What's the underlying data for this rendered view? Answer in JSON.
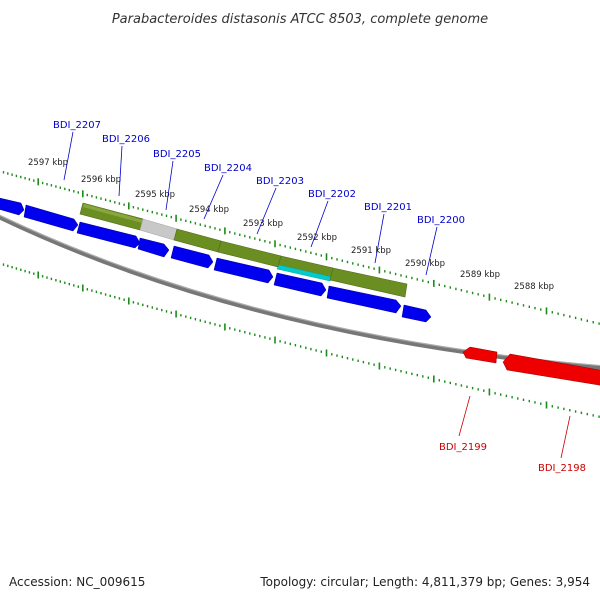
{
  "title": "Parabacteroides distasonis ATCC 8503, complete genome",
  "footer": {
    "accession": "Accession: NC_009615",
    "summary": "Topology: circular; Length: 4,811,379 bp; Genes: 3,954"
  },
  "colors": {
    "forward_gene": "#0000ee",
    "reverse_gene": "#ee0000",
    "domain_olive": "#6b8e23",
    "domain_grey": "#c8c8c8",
    "domain_cyan": "#00cccc",
    "backbone": "#777777",
    "tick": "#1a8c1a",
    "label_forward": "#0000cc",
    "label_reverse": "#cc0000"
  },
  "scale": {
    "outer_ticks_kbp": [
      "2597 kbp",
      "2596 kbp",
      "2595 kbp",
      "2594 kbp",
      "2593 kbp",
      "2592 kbp",
      "2591 kbp",
      "2590 kbp",
      "2589 kbp",
      "2588 kbp"
    ]
  },
  "genes_forward": [
    "BDI_2207",
    "BDI_2206",
    "BDI_2205",
    "BDI_2204",
    "BDI_2203",
    "BDI_2202",
    "BDI_2201",
    "BDI_2200"
  ],
  "genes_reverse": [
    "BDI_2199",
    "BDI_2198"
  ]
}
